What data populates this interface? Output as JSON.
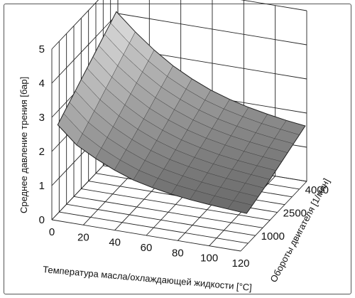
{
  "chart_data": {
    "type": "surface3d",
    "title": "",
    "xlabel": "Температура масла/охлаждающей жидкости [°C]",
    "ylabel": "Обороты двигателя [1/мин]",
    "zlabel": "Среднее давление трения [бар]",
    "x_ticks": [
      "0",
      "20",
      "40",
      "60",
      "80",
      "100",
      "120"
    ],
    "y_ticks": [
      "1000",
      "2500",
      "4000"
    ],
    "z_ticks": [
      "0",
      "1",
      "2",
      "3",
      "4",
      "5"
    ],
    "xlim": [
      0,
      120
    ],
    "ylim": [
      0,
      4500
    ],
    "zlim": [
      0,
      5
    ],
    "x": [
      0,
      12,
      24,
      36,
      48,
      60,
      72,
      84,
      96,
      108,
      120
    ],
    "y": [
      400,
      800,
      1200,
      1600,
      2000,
      2400,
      2800,
      3200,
      3600,
      4000,
      4400
    ],
    "z": [
      [
        2.6,
        2.1,
        1.8,
        1.55,
        1.35,
        1.22,
        1.12,
        1.05,
        1.0,
        0.96,
        0.92
      ],
      [
        2.75,
        2.25,
        1.92,
        1.66,
        1.45,
        1.31,
        1.2,
        1.13,
        1.07,
        1.02,
        0.98
      ],
      [
        2.9,
        2.4,
        2.05,
        1.78,
        1.56,
        1.4,
        1.29,
        1.2,
        1.14,
        1.09,
        1.05
      ],
      [
        3.05,
        2.55,
        2.18,
        1.9,
        1.67,
        1.5,
        1.38,
        1.29,
        1.22,
        1.17,
        1.12
      ],
      [
        3.2,
        2.7,
        2.32,
        2.02,
        1.78,
        1.6,
        1.47,
        1.37,
        1.3,
        1.24,
        1.19
      ],
      [
        3.35,
        2.85,
        2.46,
        2.14,
        1.9,
        1.71,
        1.57,
        1.46,
        1.38,
        1.32,
        1.27
      ],
      [
        3.5,
        3.0,
        2.6,
        2.27,
        2.02,
        1.82,
        1.67,
        1.56,
        1.47,
        1.4,
        1.35
      ],
      [
        3.65,
        3.15,
        2.74,
        2.4,
        2.14,
        1.93,
        1.77,
        1.65,
        1.56,
        1.49,
        1.43
      ],
      [
        3.8,
        3.3,
        2.88,
        2.53,
        2.26,
        2.04,
        1.87,
        1.75,
        1.65,
        1.57,
        1.51
      ],
      [
        3.95,
        3.45,
        3.02,
        2.66,
        2.38,
        2.15,
        1.98,
        1.85,
        1.74,
        1.66,
        1.59
      ],
      [
        4.1,
        3.6,
        3.16,
        2.79,
        2.5,
        2.26,
        2.08,
        1.94,
        1.83,
        1.74,
        1.67
      ]
    ],
    "grid": true
  }
}
